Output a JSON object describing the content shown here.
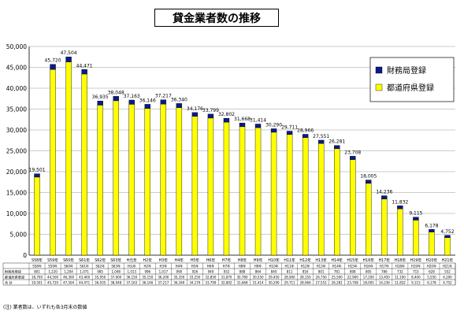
{
  "chart_data": {
    "type": "bar",
    "title": "貸金業者数の推移",
    "categories": [
      "S58年",
      "S59年",
      "S60年",
      "S61年",
      "S62年",
      "S63年",
      "H元年",
      "H2年",
      "H3年",
      "H4年",
      "H5年",
      "H6年",
      "H7年",
      "H8年",
      "H9年",
      "H10年",
      "H11年",
      "H12年",
      "H13年",
      "H14年",
      "H15年",
      "H16年",
      "H17年",
      "H18年",
      "H19年",
      "H20年",
      "H21年"
    ],
    "totals": [
      19501,
      45720,
      47504,
      44471,
      36935,
      38048,
      37163,
      36146,
      37217,
      36340,
      34176,
      33799,
      32802,
      31668,
      31414,
      30290,
      29711,
      28966,
      27551,
      26281,
      23708,
      18005,
      14236,
      11832,
      9115,
      6178,
      4752
    ],
    "series": [
      {
        "name": "都道府県登録",
        "color": "#ffff00",
        "values": [
          18700,
          44500,
          46300,
          43400,
          35950,
          37000,
          36150,
          35150,
          36200,
          35350,
          33250,
          32850,
          31870,
          30780,
          30550,
          29450,
          28900,
          28150,
          26750,
          25500,
          22900,
          17200,
          13450,
          11100,
          8400,
          5550,
          4200
        ]
      },
      {
        "name": "財務局登録",
        "color": "#0a1a8c",
        "values": [
          801,
          1220,
          1204,
          1071,
          985,
          1048,
          1013,
          996,
          1017,
          990,
          926,
          949,
          932,
          888,
          864,
          840,
          811,
          816,
          801,
          781,
          808,
          805,
          786,
          732,
          715,
          628,
          552
        ]
      }
    ],
    "ylim": [
      0,
      50000
    ],
    "yticks": [
      0,
      5000,
      10000,
      15000,
      20000,
      25000,
      30000,
      35000,
      40000,
      45000,
      50000
    ],
    "ytick_labels": [
      "0",
      "5,000",
      "10,000",
      "15,000",
      "20,000",
      "25,000",
      "30,000",
      "35,000",
      "40,000",
      "45,000",
      "50,000"
    ],
    "legend_position": "top-right",
    "grid": true,
    "table_rows": [
      "財務局登録",
      "都道府県登録",
      "合 計"
    ],
    "footnote": "(注) 業者数は、いずれも各3月末の数値"
  }
}
